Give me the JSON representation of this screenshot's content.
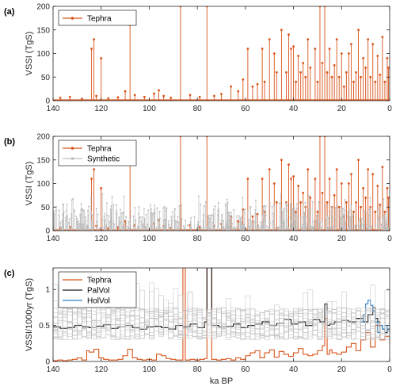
{
  "colors": {
    "tephra": "#d95319",
    "synthetic": "#bdbdbd",
    "palvol": "#1a1a1a",
    "holvol": "#2f7fc1",
    "axis": "#262626"
  },
  "chart_data": [
    {
      "panel_label": "(a)",
      "type": "line",
      "xlim": [
        140,
        0
      ],
      "x_reversed": true,
      "ylim": [
        0,
        200
      ],
      "xticks": [
        "140",
        "120",
        "100",
        "80",
        "60",
        "40",
        "20",
        "0"
      ],
      "yticks": [
        "0",
        "50",
        "100",
        "150",
        "200"
      ],
      "xlabel": "",
      "ylabel": "VSSI (TgS)",
      "legend": {
        "placement": "top-left",
        "entries": [
          "Tephra"
        ]
      },
      "series": [
        {
          "name": "Tephra",
          "style": "stem",
          "x": [
            137,
            133,
            128,
            124,
            123,
            122,
            120,
            117,
            113,
            110,
            108,
            106,
            102,
            98,
            96,
            94,
            91,
            87,
            83,
            79,
            76,
            73,
            70,
            66,
            63,
            61,
            59,
            57,
            55,
            53,
            52,
            50,
            48,
            47,
            45,
            43,
            42,
            41,
            40,
            39,
            38,
            37,
            36,
            35,
            34,
            33,
            31,
            30,
            29,
            28,
            27,
            26,
            25,
            24,
            23,
            22,
            21,
            20,
            19,
            18,
            17,
            16,
            15,
            14,
            13,
            12,
            11,
            10,
            9,
            8,
            7,
            6,
            5,
            4,
            3,
            2,
            1,
            0.5
          ],
          "y": [
            6,
            8,
            4,
            110,
            130,
            10,
            90,
            5,
            7,
            20,
            160,
            12,
            8,
            15,
            22,
            10,
            6,
            200,
            12,
            8,
            200,
            10,
            14,
            30,
            20,
            45,
            110,
            30,
            35,
            110,
            40,
            130,
            100,
            60,
            150,
            60,
            140,
            110,
            115,
            40,
            95,
            60,
            80,
            50,
            130,
            70,
            110,
            40,
            200,
            80,
            200,
            60,
            110,
            50,
            75,
            130,
            50,
            100,
            30,
            60,
            100,
            120,
            40,
            60,
            150,
            50,
            90,
            70,
            130,
            50,
            120,
            40,
            95,
            55,
            135,
            40,
            90,
            70
          ]
        }
      ]
    },
    {
      "panel_label": "(b)",
      "type": "line",
      "xlim": [
        140,
        0
      ],
      "x_reversed": true,
      "ylim": [
        0,
        200
      ],
      "xticks": [
        "140",
        "120",
        "100",
        "80",
        "60",
        "40",
        "20",
        "0"
      ],
      "yticks": [
        "0",
        "50",
        "100",
        "150",
        "200"
      ],
      "xlabel": "",
      "ylabel": "VSSI (TgS)",
      "legend": {
        "placement": "top-left",
        "entries": [
          "Tephra",
          "Synthetic"
        ]
      },
      "series": [
        {
          "name": "Tephra",
          "style": "stem",
          "x": [
            137,
            133,
            128,
            124,
            123,
            122,
            120,
            117,
            113,
            110,
            108,
            106,
            102,
            98,
            96,
            94,
            91,
            87,
            83,
            79,
            76,
            73,
            70,
            66,
            63,
            61,
            59,
            57,
            55,
            53,
            52,
            50,
            48,
            47,
            45,
            43,
            42,
            41,
            40,
            39,
            38,
            37,
            36,
            35,
            34,
            33,
            31,
            30,
            29,
            28,
            27,
            26,
            25,
            24,
            23,
            22,
            21,
            20,
            19,
            18,
            17,
            16,
            15,
            14,
            13,
            12,
            11,
            10,
            9,
            8,
            7,
            6,
            5,
            4,
            3,
            2,
            1,
            0.5
          ],
          "y": [
            6,
            8,
            4,
            110,
            130,
            10,
            90,
            5,
            7,
            20,
            160,
            12,
            8,
            15,
            22,
            10,
            6,
            200,
            12,
            8,
            200,
            10,
            14,
            30,
            20,
            45,
            110,
            30,
            35,
            110,
            40,
            130,
            100,
            60,
            150,
            60,
            140,
            110,
            115,
            40,
            95,
            60,
            80,
            50,
            130,
            70,
            110,
            40,
            200,
            80,
            200,
            60,
            110,
            50,
            75,
            130,
            50,
            100,
            30,
            60,
            100,
            120,
            40,
            60,
            150,
            50,
            90,
            70,
            130,
            50,
            120,
            40,
            95,
            55,
            135,
            40,
            90,
            70
          ]
        },
        {
          "name": "Synthetic",
          "style": "stem-dense",
          "x_range": [
            0,
            140
          ],
          "typical_range": [
            5,
            60
          ],
          "max_value": 80
        }
      ]
    },
    {
      "panel_label": "(c)",
      "type": "line",
      "xlim": [
        140,
        0
      ],
      "x_reversed": true,
      "ylim": [
        0,
        1.3
      ],
      "xticks": [
        "140",
        "120",
        "100",
        "80",
        "60",
        "40",
        "20",
        "0"
      ],
      "yticks": [
        "0",
        "0.5",
        "1"
      ],
      "xlabel": "ka BP",
      "ylabel": "VSSI/1000yr (TgS)",
      "legend": {
        "placement": "top-left",
        "entries": [
          "Tephra",
          "PalVol",
          "HolVol"
        ]
      },
      "series": [
        {
          "name": "Tephra",
          "style": "step",
          "x": [
            140,
            138,
            136,
            134,
            132,
            130,
            128,
            126,
            125,
            123,
            121,
            119,
            117,
            115,
            113,
            111,
            109,
            107,
            105,
            103,
            101,
            99,
            97,
            95,
            93,
            91,
            89,
            87,
            86,
            85,
            83,
            81,
            79,
            77,
            76,
            75,
            74,
            72,
            70,
            68,
            66,
            64,
            62,
            60,
            58,
            56,
            54,
            52,
            50,
            48,
            46,
            44,
            42,
            40,
            38,
            36,
            34,
            32,
            30,
            28,
            27,
            26,
            25,
            24,
            22,
            20,
            18,
            16,
            14,
            12,
            10,
            8,
            6,
            4,
            2,
            0
          ],
          "y": [
            0.01,
            0.02,
            0.01,
            0.02,
            0.03,
            0.05,
            0.02,
            0.15,
            0.13,
            0.17,
            0.05,
            0.03,
            0.02,
            0.02,
            0.03,
            0.08,
            0.17,
            0.05,
            0.03,
            0.02,
            0.03,
            0.02,
            0.1,
            0.08,
            0.04,
            0.03,
            0.02,
            0.02,
            1.3,
            0.02,
            0.03,
            0.02,
            0.03,
            0.04,
            1.3,
            1.3,
            0.03,
            0.02,
            0.03,
            0.04,
            0.02,
            0.05,
            0.03,
            0.08,
            0.12,
            0.15,
            0.05,
            0.12,
            0.16,
            0.06,
            0.14,
            0.1,
            0.07,
            0.12,
            0.18,
            0.1,
            0.08,
            0.1,
            0.15,
            0.22,
            0.6,
            0.1,
            0.16,
            0.12,
            0.1,
            0.13,
            0.2,
            0.25,
            0.15,
            0.3,
            0.4,
            0.2,
            0.5,
            0.3,
            0.35,
            0.25
          ]
        },
        {
          "name": "PalVol",
          "style": "step",
          "x": [
            140,
            137,
            134,
            131,
            128,
            125,
            122,
            119,
            116,
            113,
            110,
            107,
            104,
            101,
            98,
            95,
            92,
            89,
            86,
            83,
            80,
            77,
            76,
            75,
            74,
            71,
            68,
            65,
            62,
            59,
            56,
            53,
            50,
            47,
            44,
            41,
            38,
            35,
            32,
            29,
            27,
            26,
            25,
            23,
            20,
            17,
            14,
            11,
            9,
            7,
            6,
            5,
            4,
            3,
            2,
            1,
            0
          ],
          "y": [
            0.48,
            0.46,
            0.47,
            0.5,
            0.48,
            0.47,
            0.49,
            0.51,
            0.46,
            0.48,
            0.5,
            0.47,
            0.45,
            0.48,
            0.49,
            0.47,
            0.45,
            0.5,
            0.48,
            0.52,
            0.47,
            0.55,
            1.3,
            1.3,
            0.5,
            0.48,
            0.49,
            0.52,
            0.47,
            0.5,
            0.52,
            0.55,
            0.5,
            0.53,
            0.58,
            0.52,
            0.55,
            0.5,
            0.58,
            0.55,
            0.8,
            0.5,
            0.52,
            0.55,
            0.57,
            0.55,
            0.6,
            0.55,
            0.65,
            0.75,
            0.6,
            0.55,
            0.5,
            0.45,
            0.4,
            0.45,
            0.5
          ]
        },
        {
          "name": "HolVol",
          "style": "step",
          "x": [
            12,
            11,
            10,
            9,
            8,
            7,
            6,
            5,
            4,
            3,
            2,
            1,
            0
          ],
          "y": [
            0.55,
            0.65,
            0.8,
            0.85,
            0.78,
            0.7,
            0.55,
            0.4,
            0.5,
            0.45,
            0.5,
            0.42,
            0.5
          ]
        },
        {
          "name": "Synthetic",
          "style": "step-ensemble",
          "x_range": [
            0,
            140
          ],
          "y_band": [
            0.3,
            0.75
          ],
          "max_value": 1.1
        }
      ]
    }
  ]
}
